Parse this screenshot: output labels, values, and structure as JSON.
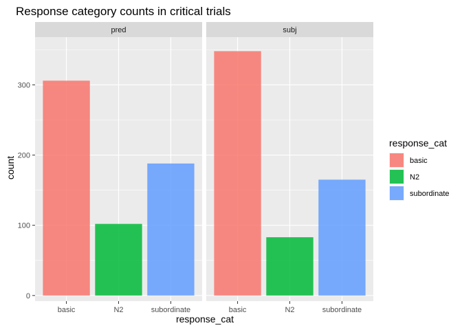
{
  "chart_data": {
    "type": "bar",
    "title": "Response category counts in critical trials",
    "xlabel": "response_cat",
    "ylabel": "count",
    "categories": [
      "basic",
      "N2",
      "subordinate"
    ],
    "ylim": [
      -8,
      368
    ],
    "yticks": [
      0,
      100,
      200,
      300
    ],
    "grid": true,
    "legend_position": "right",
    "legend": {
      "title": "response_cat",
      "entries": [
        {
          "label": "basic",
          "color": "#F8766D"
        },
        {
          "label": "N2",
          "color": "#00BA38"
        },
        {
          "label": "subordinate",
          "color": "#619CFF"
        }
      ]
    },
    "panels": [
      {
        "name": "pred",
        "values": [
          306,
          102,
          188
        ]
      },
      {
        "name": "subj",
        "values": [
          348,
          83,
          165
        ]
      }
    ],
    "colors": {
      "panel_background": "#EBEBEB",
      "strip_background": "#D9D9D9",
      "grid": "#FFFFFF"
    }
  }
}
